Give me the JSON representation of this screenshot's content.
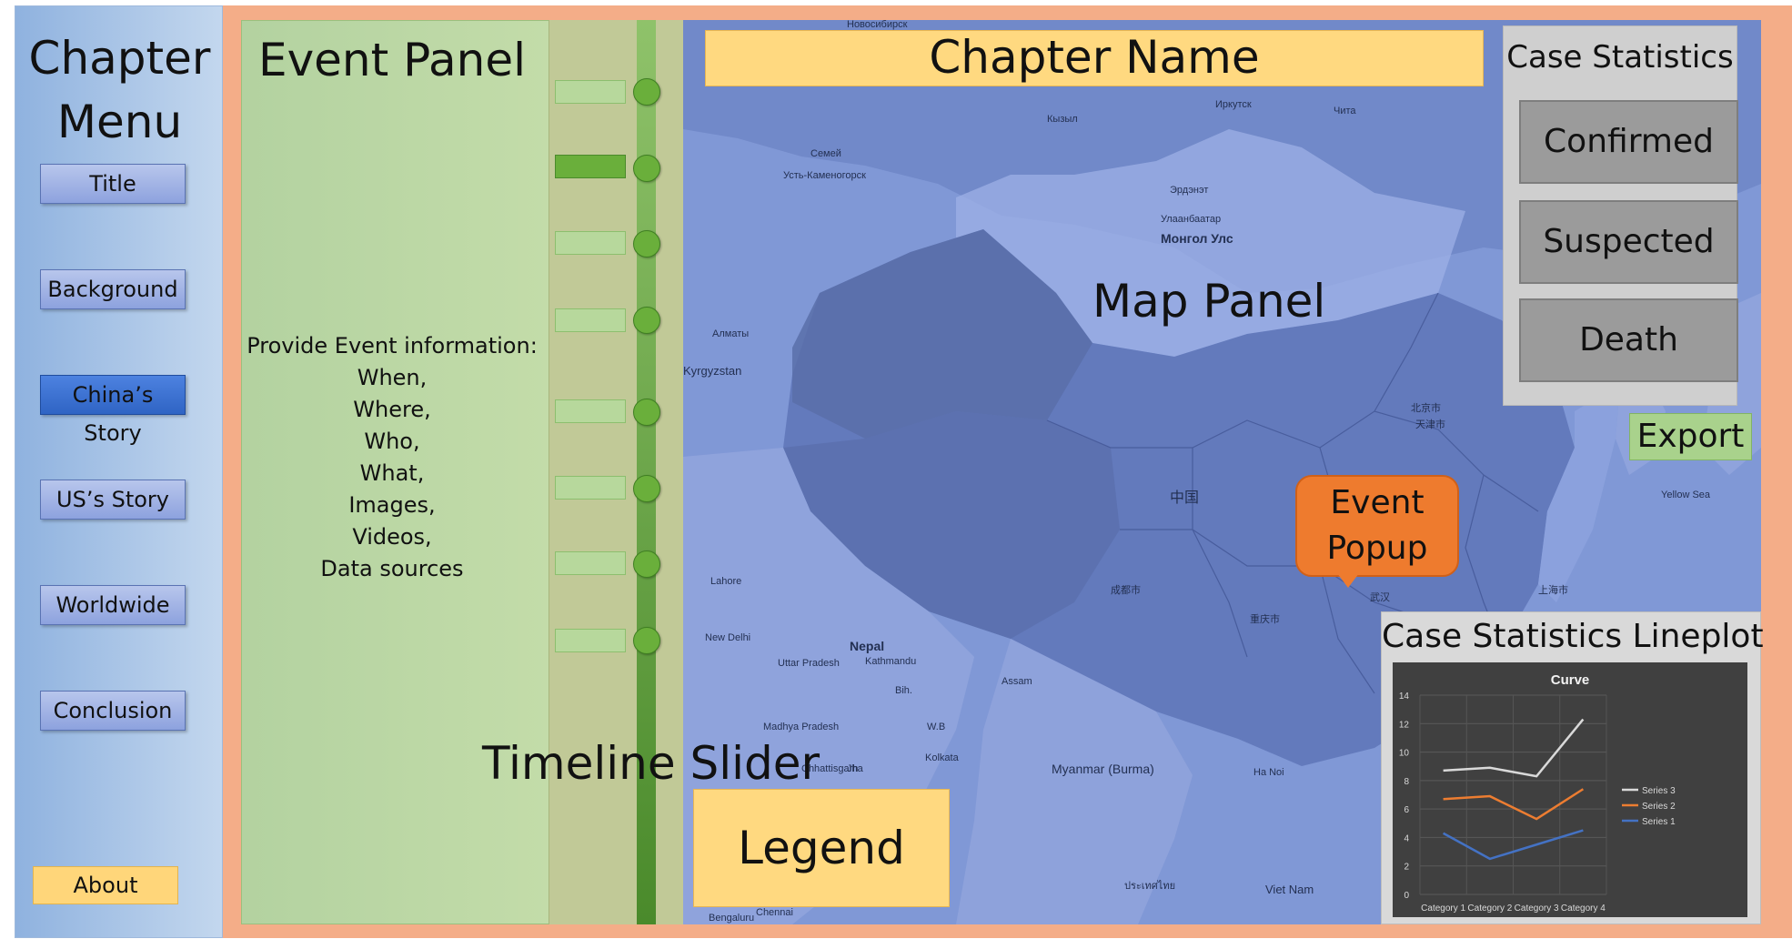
{
  "sidebar": {
    "title": "Chapter\nMenu",
    "items": [
      {
        "label": "Title",
        "active": false
      },
      {
        "label": "Background",
        "active": false
      },
      {
        "label": "China’s Story",
        "active": true
      },
      {
        "label": "US’s Story",
        "active": false
      },
      {
        "label": "Worldwide",
        "active": false
      },
      {
        "label": "Conclusion",
        "active": false
      }
    ],
    "about_label": "About"
  },
  "event_panel": {
    "title": "Event Panel",
    "info_lines": [
      "Provide Event information:",
      "When,",
      "Where,",
      "Who,",
      "What,",
      "Images,",
      "Videos,",
      "Data sources"
    ]
  },
  "timeline": {
    "label": "Timeline Slider",
    "tick_count": 8,
    "selected_index": 1
  },
  "map": {
    "chapter_name": "Chapter Name",
    "panel_label": "Map Panel",
    "labels": [
      "Новосибирск",
      "Кызыл",
      "Иркутск",
      "Чита",
      "Семей",
      "Усть-Каменогорск",
      "Эрдэнэт",
      "Улаанбаатар",
      "Монгол Улс",
      "Алматы",
      "Kyrgyzstan",
      "Lahore",
      "New Delhi",
      "Nepal",
      "Kathmandu",
      "Uttar Pradesh",
      "Bih.",
      "Madhya Pradesh",
      "Kolkata",
      "Myanmar (Burma)",
      "Ha Noi",
      "Viet Nam",
      "Chennai",
      "Bengaluru",
      "Yellow Sea",
      "中国",
      "上海市",
      "武汉",
      "重庆市",
      "成都市",
      "北京市",
      "天津市",
      "Chhattisgarh",
      "Jha",
      "W.B",
      "Assam",
      "ประเทศไทย"
    ]
  },
  "case_statistics": {
    "title": "Case Statistics",
    "confirmed_label": "Confirmed",
    "suspected_label": "Suspected",
    "death_label": "Death",
    "export_label": "Export"
  },
  "event_popup": {
    "text": "Event\nPopup"
  },
  "legend": {
    "label": "Legend"
  },
  "lineplot": {
    "panel_title": "Case Statistics Lineplot"
  },
  "colors": {
    "series3": "#d9d9d9",
    "series2": "#ed7d31",
    "series1": "#4472c4",
    "accent_blue": "#2f64c4",
    "popup_orange": "#ee7b2e"
  },
  "chart_data": {
    "type": "line",
    "title": "Curve",
    "categories": [
      "Category 1",
      "Category 2",
      "Category 3",
      "Category 4"
    ],
    "series": [
      {
        "name": "Series 3",
        "values": [
          8.7,
          8.9,
          8.3,
          12.3
        ]
      },
      {
        "name": "Series 2",
        "values": [
          6.7,
          6.9,
          5.3,
          7.4
        ]
      },
      {
        "name": "Series 1",
        "values": [
          4.3,
          2.5,
          3.5,
          4.5
        ]
      }
    ],
    "yticks": [
      0,
      2,
      4,
      6,
      8,
      10,
      12,
      14
    ],
    "ylim": [
      0,
      14
    ],
    "grid": true,
    "legend_position": "right"
  }
}
